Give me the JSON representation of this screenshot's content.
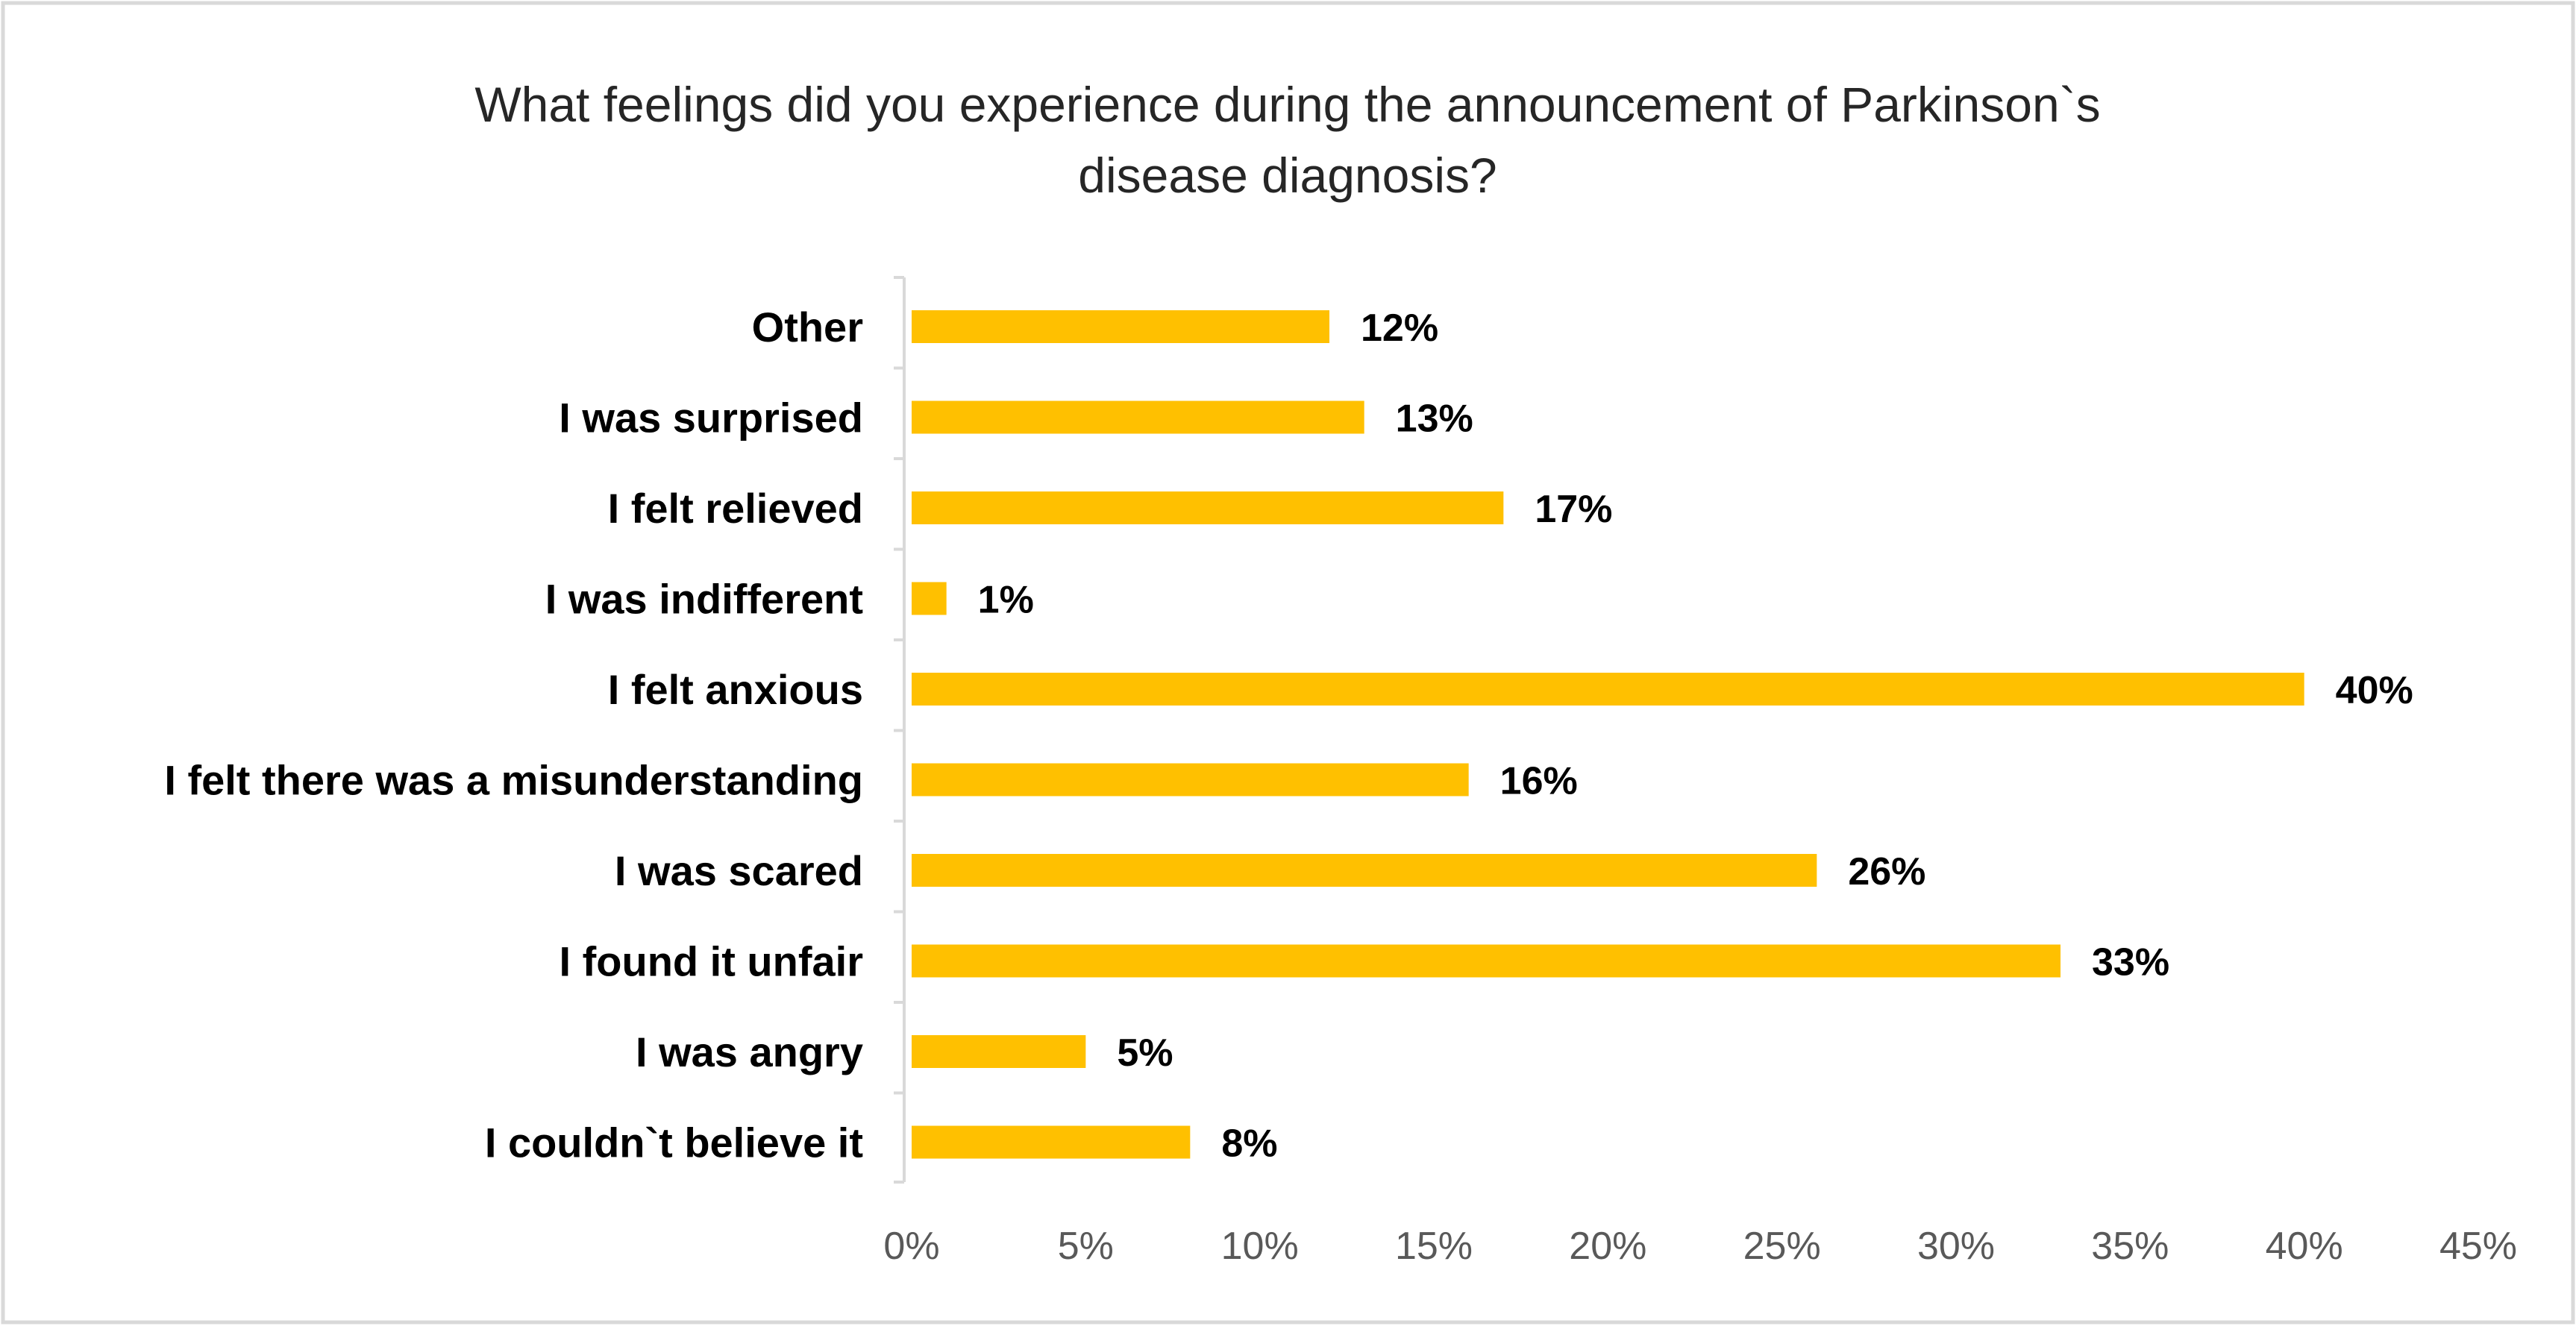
{
  "chart_data": {
    "type": "bar",
    "orientation": "horizontal",
    "title": "What feelings did you experience during the announcement of Parkinson`s disease diagnosis?",
    "title_lines": [
      "What feelings did you experience during the announcement of Parkinson`s",
      "disease diagnosis?"
    ],
    "categories": [
      "Other",
      "I was surprised",
      "I felt relieved",
      "I was indifferent",
      "I felt anxious",
      "I felt there was a misunderstanding",
      "I was scared",
      "I found it unfair",
      "I was angry",
      "I couldn`t believe it"
    ],
    "values": [
      12,
      13,
      17,
      1,
      40,
      16,
      26,
      33,
      5,
      8
    ],
    "data_labels": [
      "12%",
      "13%",
      "17%",
      "1%",
      "40%",
      "16%",
      "26%",
      "33%",
      "5%",
      "8%"
    ],
    "x_ticks": [
      0,
      5,
      10,
      15,
      20,
      25,
      30,
      35,
      40,
      45
    ],
    "x_tick_labels": [
      "0%",
      "5%",
      "10%",
      "15%",
      "20%",
      "25%",
      "30%",
      "35%",
      "40%",
      "45%"
    ],
    "xlim": [
      0,
      45
    ],
    "xlabel": "",
    "ylabel": "",
    "grid": false,
    "legend": "none",
    "bar_color": "#FFC000",
    "axis_color": "#D9D9D9",
    "border_color": "#D9D9D9"
  }
}
